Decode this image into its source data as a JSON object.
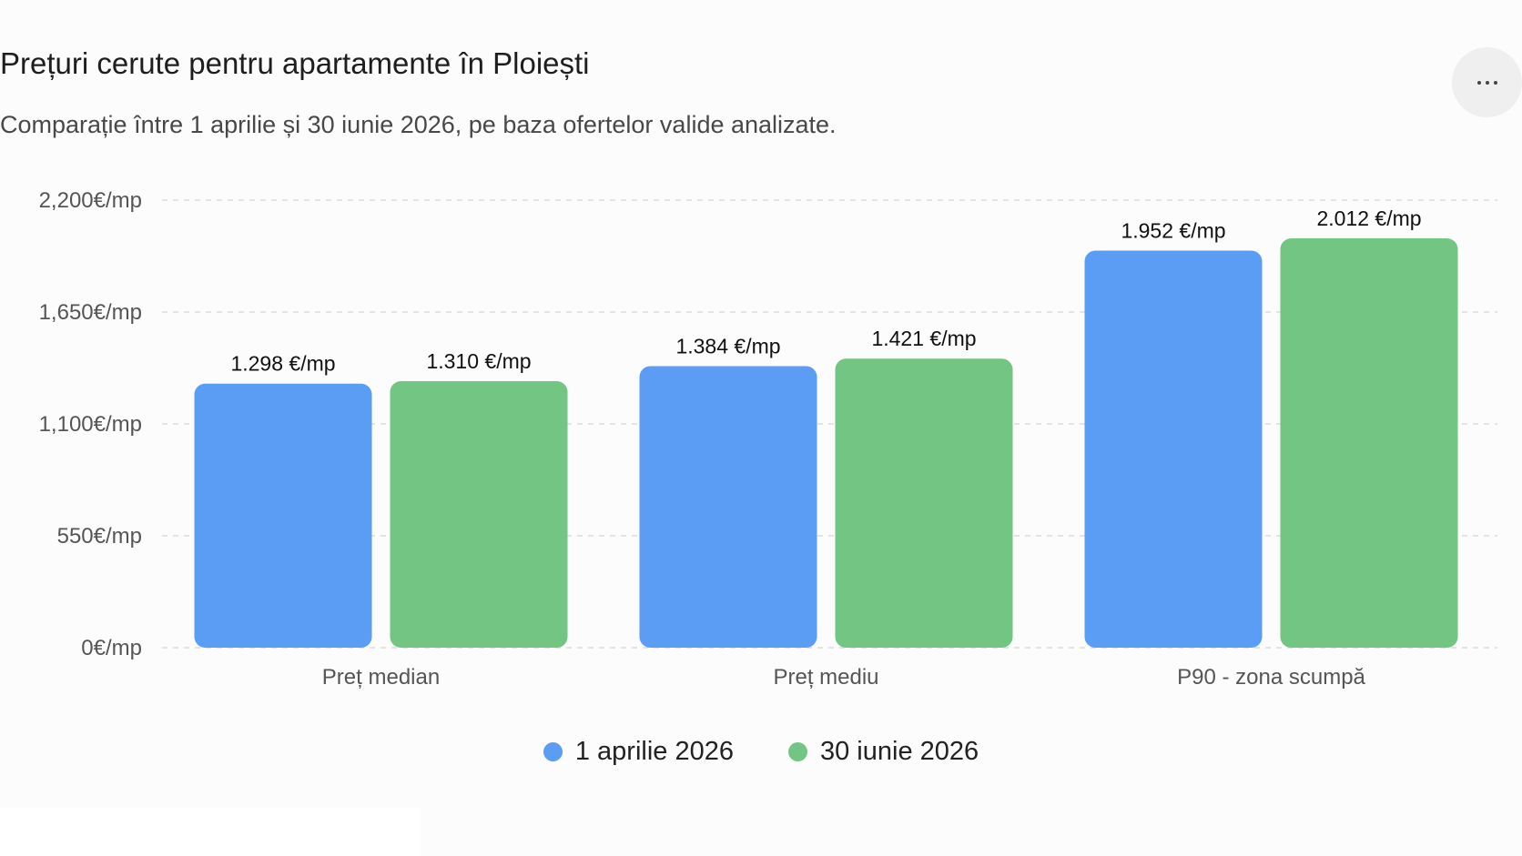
{
  "header": {
    "title": "Prețuri cerute pentru apartamente în Ploiești",
    "subtitle": "Comparație între 1 aprilie și 30 iunie 2026, pe baza ofertelor valide analizate."
  },
  "colors": {
    "series1": "#5b9cf5",
    "series2": "#72c582",
    "grid": "#dcdcdc"
  },
  "icons": {
    "more": "more-horizontal-icon"
  },
  "chart_data": {
    "type": "bar",
    "title": "Prețuri cerute pentru apartamente în Ploiești",
    "categories": [
      "Preț median",
      "Preț mediu",
      "P90 - zona scumpă"
    ],
    "series": [
      {
        "name": "1 aprilie 2026",
        "values": [
          1298,
          1384,
          1952
        ],
        "labels": [
          "1.298 €/mp",
          "1.384 €/mp",
          "1.952 €/mp"
        ]
      },
      {
        "name": "30 iunie 2026",
        "values": [
          1310,
          1421,
          2012
        ],
        "labels": [
          "1.310 €/mp",
          "1.421 €/mp",
          "2.012 €/mp"
        ]
      }
    ],
    "ylim": [
      0,
      2200
    ],
    "yticks": [
      0,
      550,
      1100,
      1650,
      2200
    ],
    "ytick_labels": [
      "0€/mp",
      "550€/mp",
      "1,100€/mp",
      "1,650€/mp",
      "2,200€/mp"
    ],
    "grid": true,
    "legend": "bottom-center"
  }
}
